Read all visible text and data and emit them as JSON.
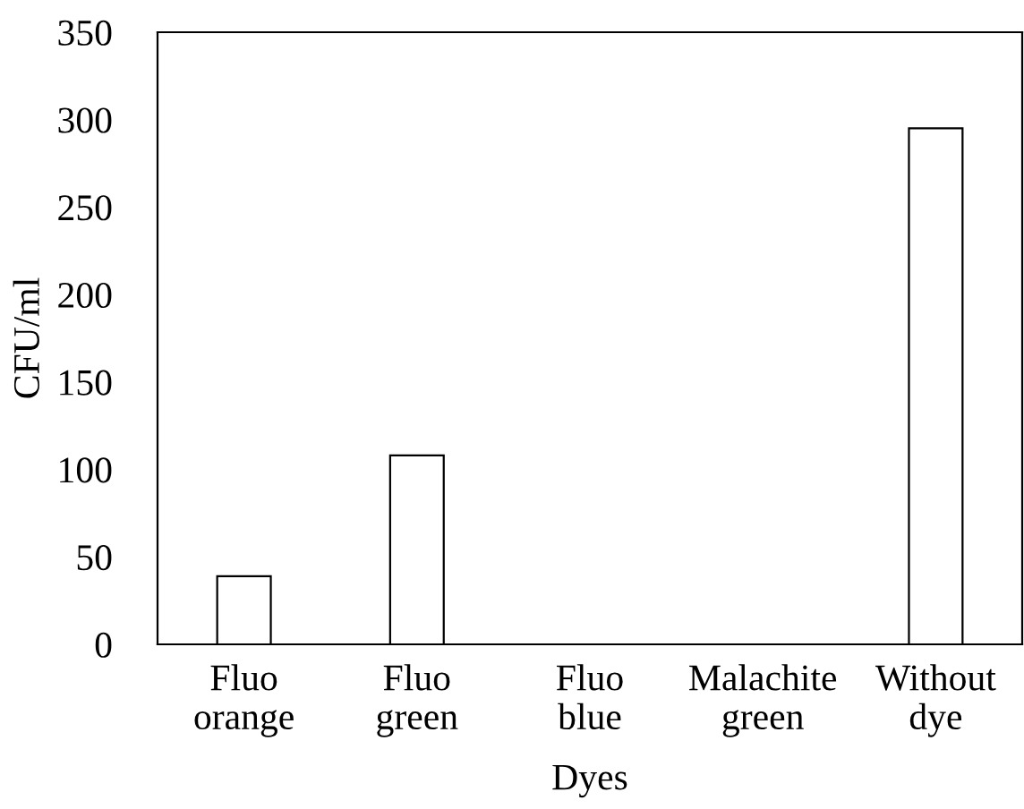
{
  "chart_data": {
    "type": "bar",
    "categories": [
      "Fluo\norange",
      "Fluo\ngreen",
      "Fluo\nblue",
      "Malachite\ngreen",
      "Without\ndye"
    ],
    "values": [
      39,
      108,
      0,
      0,
      295
    ],
    "color": "#ffffff",
    "xlabel": "Dyes",
    "ylabel": "CFU/ml",
    "ylim": [
      0,
      350
    ],
    "yticks": [
      0,
      50,
      100,
      150,
      200,
      250,
      300,
      350
    ],
    "grid": false,
    "legend": false
  }
}
